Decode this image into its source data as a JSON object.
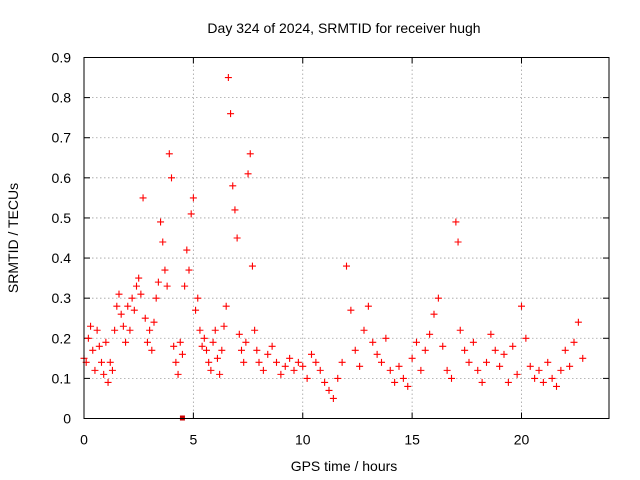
{
  "chart_data": {
    "type": "scatter",
    "title": "Day 324 of 2024, SRMTID for receiver hugh",
    "xlabel": "GPS time / hours",
    "ylabel": "SRMTID / TECUs",
    "xlim": [
      0,
      24
    ],
    "ylim": [
      0,
      0.9
    ],
    "xticks": [
      0,
      5,
      10,
      15,
      20
    ],
    "yticks": [
      0,
      0.1,
      0.2,
      0.3,
      0.4,
      0.5,
      0.6,
      0.7,
      0.8,
      0.9
    ],
    "xtick_labels": [
      "0",
      "5",
      "10",
      "15",
      "20"
    ],
    "ytick_labels": [
      "0",
      "0.1",
      "0.2",
      "0.3",
      "0.4",
      "0.5",
      "0.6",
      "0.7",
      "0.8",
      "0.9"
    ],
    "grid": true,
    "marker": "plus",
    "color": "#ff0000",
    "zero_marker_color": "#cc0000",
    "series": [
      {
        "name": "SRMTID",
        "x": [
          0.0,
          0.1,
          0.2,
          0.3,
          0.4,
          0.5,
          0.6,
          0.7,
          0.8,
          0.9,
          1.0,
          1.1,
          1.2,
          1.3,
          1.4,
          1.5,
          1.6,
          1.7,
          1.8,
          1.9,
          2.0,
          2.1,
          2.2,
          2.3,
          2.4,
          2.5,
          2.6,
          2.7,
          2.8,
          2.9,
          3.0,
          3.1,
          3.2,
          3.3,
          3.4,
          3.5,
          3.6,
          3.7,
          3.8,
          3.9,
          4.0,
          4.1,
          4.2,
          4.3,
          4.4,
          4.5,
          4.6,
          4.7,
          4.8,
          4.9,
          5.0,
          5.1,
          5.2,
          5.3,
          5.4,
          5.5,
          5.6,
          5.7,
          5.8,
          5.9,
          6.0,
          6.1,
          6.2,
          6.3,
          6.4,
          6.5,
          6.6,
          6.7,
          6.8,
          6.9,
          7.0,
          7.1,
          7.2,
          7.3,
          7.4,
          7.5,
          7.6,
          7.7,
          7.8,
          7.9,
          8.0,
          8.2,
          8.4,
          8.6,
          8.8,
          9.0,
          9.2,
          9.4,
          9.6,
          9.8,
          10.0,
          10.2,
          10.4,
          10.6,
          10.8,
          11.0,
          11.2,
          11.4,
          11.6,
          11.8,
          12.0,
          12.2,
          12.4,
          12.6,
          12.8,
          13.0,
          13.2,
          13.4,
          13.6,
          13.8,
          14.0,
          14.2,
          14.4,
          14.6,
          14.8,
          15.0,
          15.2,
          15.4,
          15.6,
          15.8,
          16.0,
          16.2,
          16.4,
          16.6,
          16.8,
          17.0,
          17.1,
          17.2,
          17.4,
          17.6,
          17.8,
          18.0,
          18.2,
          18.4,
          18.6,
          18.8,
          19.0,
          19.2,
          19.4,
          19.6,
          19.8,
          20.0,
          20.2,
          20.4,
          20.6,
          20.8,
          21.0,
          21.2,
          21.4,
          21.6,
          21.8,
          22.0,
          22.2,
          22.4,
          22.6,
          22.8
        ],
        "y": [
          0.15,
          0.14,
          0.2,
          0.23,
          0.17,
          0.12,
          0.22,
          0.18,
          0.14,
          0.11,
          0.19,
          0.09,
          0.14,
          0.12,
          0.22,
          0.28,
          0.31,
          0.26,
          0.23,
          0.19,
          0.28,
          0.22,
          0.3,
          0.27,
          0.33,
          0.35,
          0.31,
          0.55,
          0.25,
          0.19,
          0.22,
          0.17,
          0.24,
          0.3,
          0.34,
          0.49,
          0.44,
          0.37,
          0.33,
          0.66,
          0.6,
          0.18,
          0.14,
          0.11,
          0.19,
          0.16,
          0.33,
          0.42,
          0.37,
          0.51,
          0.55,
          0.27,
          0.3,
          0.22,
          0.18,
          0.2,
          0.17,
          0.14,
          0.12,
          0.19,
          0.22,
          0.15,
          0.11,
          0.17,
          0.23,
          0.28,
          0.85,
          0.76,
          0.58,
          0.52,
          0.45,
          0.21,
          0.17,
          0.14,
          0.19,
          0.61,
          0.66,
          0.38,
          0.22,
          0.17,
          0.14,
          0.12,
          0.16,
          0.18,
          0.14,
          0.11,
          0.13,
          0.15,
          0.12,
          0.14,
          0.13,
          0.1,
          0.16,
          0.14,
          0.12,
          0.09,
          0.07,
          0.05,
          0.1,
          0.14,
          0.38,
          0.27,
          0.17,
          0.13,
          0.22,
          0.28,
          0.19,
          0.16,
          0.14,
          0.2,
          0.12,
          0.09,
          0.13,
          0.1,
          0.08,
          0.15,
          0.19,
          0.12,
          0.17,
          0.21,
          0.26,
          0.3,
          0.18,
          0.12,
          0.1,
          0.49,
          0.44,
          0.22,
          0.17,
          0.14,
          0.19,
          0.12,
          0.09,
          0.14,
          0.21,
          0.17,
          0.13,
          0.16,
          0.09,
          0.18,
          0.11,
          0.28,
          0.2,
          0.13,
          0.1,
          0.12,
          0.09,
          0.14,
          0.1,
          0.08,
          0.12,
          0.17,
          0.13,
          0.19,
          0.24,
          0.15
        ]
      }
    ],
    "zero_markers_x": [
      4.5
    ]
  }
}
